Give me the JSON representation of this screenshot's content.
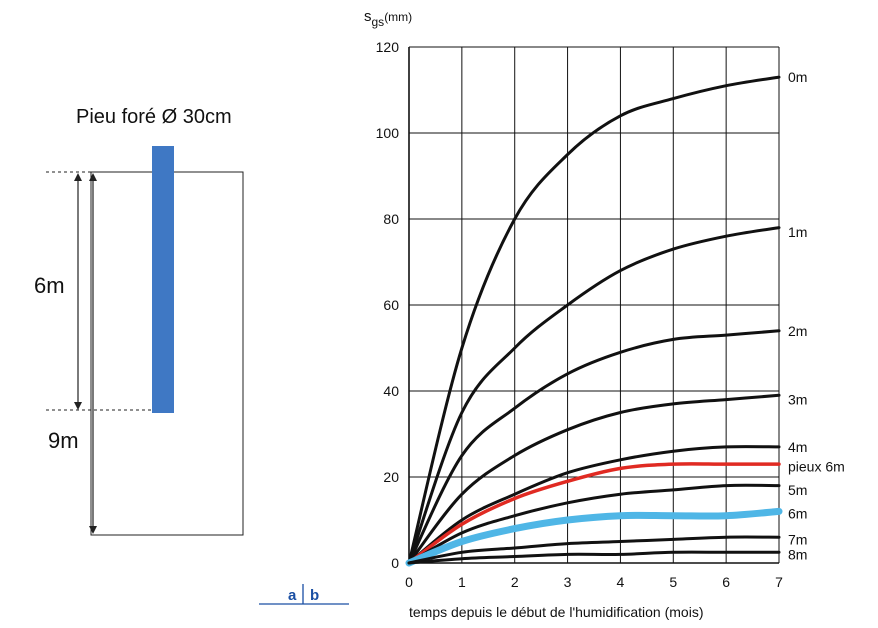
{
  "left_panel": {
    "title": "Pieu foré Ø 30cm",
    "dim_upper": "6m",
    "dim_total": "9m",
    "pile_color": "#3f78c4",
    "panel_label_a": "a",
    "panel_label_b": "b",
    "panel_label_color": "#1a4fa3"
  },
  "chart_data": {
    "type": "line",
    "title": "",
    "ylabel_prefix": "s",
    "ylabel_subscript": "gs",
    "ylabel_unit": "(mm)",
    "xlabel": "temps depuis le début de l'humidification (mois)",
    "xlim": [
      0,
      7
    ],
    "ylim": [
      0,
      120
    ],
    "xticks": [
      "0",
      "1",
      "2",
      "3",
      "4",
      "5",
      "6",
      "7"
    ],
    "yticks": [
      "0",
      "20",
      "40",
      "60",
      "80",
      "100",
      "120"
    ],
    "grid": true,
    "x": [
      0,
      1,
      2,
      3,
      4,
      5,
      6,
      7
    ],
    "series": [
      {
        "name": "0m",
        "color": "#111111",
        "values": [
          0,
          50,
          80,
          95,
          104,
          108,
          111,
          113
        ]
      },
      {
        "name": "1m",
        "color": "#111111",
        "values": [
          0,
          35,
          50,
          60,
          68,
          73,
          76,
          78
        ]
      },
      {
        "name": "2m",
        "color": "#111111",
        "values": [
          0,
          25,
          36,
          44,
          49,
          52,
          53,
          54
        ]
      },
      {
        "name": "3m",
        "color": "#111111",
        "values": [
          0,
          16,
          25,
          31,
          35,
          37,
          38,
          39
        ]
      },
      {
        "name": "4m",
        "color": "#111111",
        "values": [
          0,
          10,
          16,
          21,
          24,
          26,
          27,
          27
        ]
      },
      {
        "name": "pieux 6m",
        "color": "#e02a22",
        "values": [
          0,
          9,
          15,
          19,
          22,
          23,
          23,
          23
        ]
      },
      {
        "name": "5m",
        "color": "#111111",
        "values": [
          0,
          7,
          11,
          14,
          16,
          17,
          18,
          18
        ]
      },
      {
        "name": "6m",
        "color": "#4fb6e6",
        "values": [
          0,
          5,
          8,
          10,
          11,
          11,
          11,
          12
        ]
      },
      {
        "name": "7m",
        "color": "#111111",
        "values": [
          0,
          2.5,
          3.5,
          4.5,
          5,
          5.5,
          6,
          6
        ]
      },
      {
        "name": "8m",
        "color": "#111111",
        "values": [
          0,
          1,
          1.5,
          2,
          2,
          2.5,
          2.5,
          2.5
        ]
      }
    ],
    "label_values": {
      "0m": 113,
      "1m": 77,
      "2m": 54,
      "3m": 38,
      "4m": 27,
      "pieux 6m": 22.5,
      "5m": 17,
      "6m": 11.5,
      "7m": 5.5,
      "8m": 2
    }
  }
}
